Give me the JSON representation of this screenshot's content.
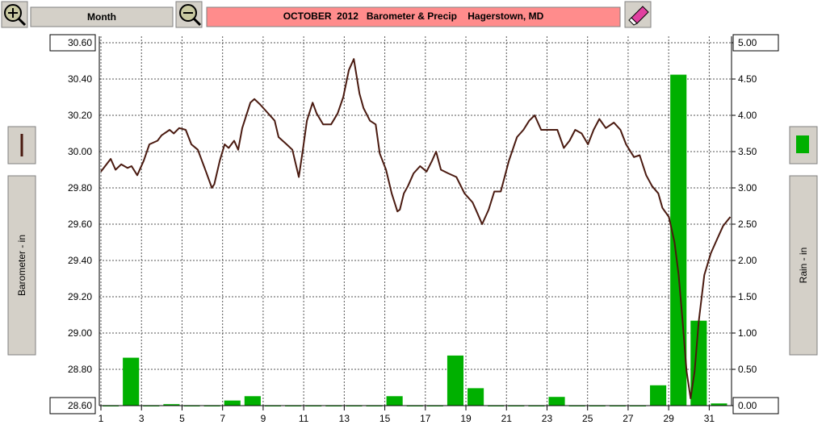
{
  "toolbar": {
    "view_button": "Month",
    "title": "OCTOBER  2012   Barometer & Precip    Hagerstown, MD"
  },
  "chart_data": {
    "type": "line",
    "ylabel": "Barometer - in",
    "y2label": "Rain - in",
    "xlim": [
      0.92,
      32.1
    ],
    "xticks": [
      1,
      3,
      5,
      7,
      9,
      11,
      13,
      15,
      17,
      19,
      21,
      23,
      25,
      27,
      29,
      31
    ],
    "ylim": [
      28.6,
      30.6
    ],
    "yticks": [
      {
        "value": 28.6,
        "label": "28.60"
      },
      {
        "value": 28.8,
        "label": "28.80"
      },
      {
        "value": 29,
        "label": "29.00"
      },
      {
        "value": 29.2,
        "label": "29.20"
      },
      {
        "value": 29.4,
        "label": "29.40"
      },
      {
        "value": 29.6,
        "label": "29.60"
      },
      {
        "value": 29.8,
        "label": "29.80"
      },
      {
        "value": 30,
        "label": "30.00"
      },
      {
        "value": 30.2,
        "label": "30.20"
      },
      {
        "value": 30.4,
        "label": "30.40"
      },
      {
        "value": 30.6,
        "label": "30.60"
      }
    ],
    "y2lim": [
      0,
      5
    ],
    "y2ticks": [
      {
        "value": 0,
        "label": "0.00"
      },
      {
        "value": 0.5,
        "label": "0.50"
      },
      {
        "value": 1,
        "label": "1.00"
      },
      {
        "value": 1.5,
        "label": "1.50"
      },
      {
        "value": 2,
        "label": "2.00"
      },
      {
        "value": 2.5,
        "label": "2.50"
      },
      {
        "value": 3,
        "label": "3.00"
      },
      {
        "value": 3.5,
        "label": "3.50"
      },
      {
        "value": 4,
        "label": "4.00"
      },
      {
        "value": 4.5,
        "label": "4.50"
      },
      {
        "value": 5,
        "label": "5.00"
      }
    ],
    "grid": true,
    "series": [
      {
        "type": "line",
        "color": "#4a1a10",
        "x": [
          1.0,
          1.48,
          1.72,
          2.0,
          2.31,
          2.51,
          2.79,
          3.11,
          3.39,
          3.79,
          3.99,
          4.39,
          4.59,
          4.86,
          5.18,
          5.46,
          5.78,
          6.18,
          6.47,
          6.59,
          6.86,
          7.1,
          7.3,
          7.57,
          7.77,
          7.97,
          8.37,
          8.57,
          8.85,
          9.17,
          9.57,
          9.76,
          10.16,
          10.44,
          10.76,
          10.96,
          11.16,
          11.44,
          11.64,
          11.96,
          12.35,
          12.67,
          12.95,
          13.23,
          13.47,
          13.75,
          13.95,
          14.27,
          14.55,
          14.75,
          15.06,
          15.34,
          15.62,
          15.74,
          15.94,
          16.14,
          16.42,
          16.74,
          17.06,
          17.33,
          17.53,
          17.77,
          18.13,
          18.53,
          18.93,
          19.33,
          19.53,
          19.8,
          20.12,
          20.4,
          20.72,
          21.12,
          21.52,
          21.84,
          22.12,
          22.39,
          22.71,
          23.11,
          23.51,
          23.83,
          24.11,
          24.39,
          24.71,
          25.02,
          25.3,
          25.58,
          25.9,
          26.3,
          26.62,
          26.9,
          27.29,
          27.57,
          27.89,
          28.18,
          28.49,
          28.69,
          29.01,
          29.29,
          29.49,
          29.69,
          29.88,
          30.08,
          30.28,
          30.48,
          30.76,
          31.08,
          31.4,
          31.68,
          32.04
        ],
        "values": [
          29.89,
          29.96,
          29.9,
          29.93,
          29.91,
          29.92,
          29.87,
          29.95,
          30.04,
          30.06,
          30.09,
          30.12,
          30.1,
          30.13,
          30.12,
          30.04,
          30.01,
          29.89,
          29.8,
          29.82,
          29.95,
          30.04,
          30.02,
          30.06,
          30.01,
          30.13,
          30.27,
          30.29,
          30.26,
          30.22,
          30.17,
          30.08,
          30.04,
          30.01,
          29.86,
          30.01,
          30.17,
          30.27,
          30.21,
          30.15,
          30.15,
          30.21,
          30.3,
          30.45,
          30.51,
          30.32,
          30.24,
          30.17,
          30.15,
          29.99,
          29.9,
          29.77,
          29.67,
          29.68,
          29.77,
          29.81,
          29.88,
          29.92,
          29.89,
          29.95,
          30.0,
          29.9,
          29.88,
          29.86,
          29.77,
          29.72,
          29.67,
          29.6,
          29.68,
          29.78,
          29.78,
          29.95,
          30.08,
          30.12,
          30.17,
          30.2,
          30.12,
          30.12,
          30.12,
          30.02,
          30.06,
          30.12,
          30.1,
          30.04,
          30.12,
          30.18,
          30.13,
          30.16,
          30.12,
          30.04,
          29.97,
          29.98,
          29.87,
          29.81,
          29.77,
          29.69,
          29.64,
          29.5,
          29.32,
          29.06,
          28.79,
          28.64,
          28.79,
          29.06,
          29.32,
          29.44,
          29.52,
          29.59,
          29.64
        ]
      },
      {
        "type": "bar",
        "axis": "y2",
        "color": "#00b000",
        "x": [
          1,
          2,
          3,
          4,
          5,
          6,
          7,
          8,
          9,
          10,
          11,
          12,
          13,
          14,
          15,
          16,
          17,
          18,
          19,
          20,
          21,
          22,
          23,
          24,
          25,
          26,
          27,
          28,
          29,
          30,
          31
        ],
        "values": [
          0,
          0.66,
          0,
          0.02,
          0,
          0,
          0.07,
          0.13,
          0,
          0,
          0,
          0,
          0,
          0,
          0.13,
          0,
          0,
          0.69,
          0.24,
          0,
          0,
          0,
          0.12,
          0,
          0,
          0,
          0,
          0.28,
          4.56,
          1.17,
          0.03
        ]
      }
    ]
  }
}
